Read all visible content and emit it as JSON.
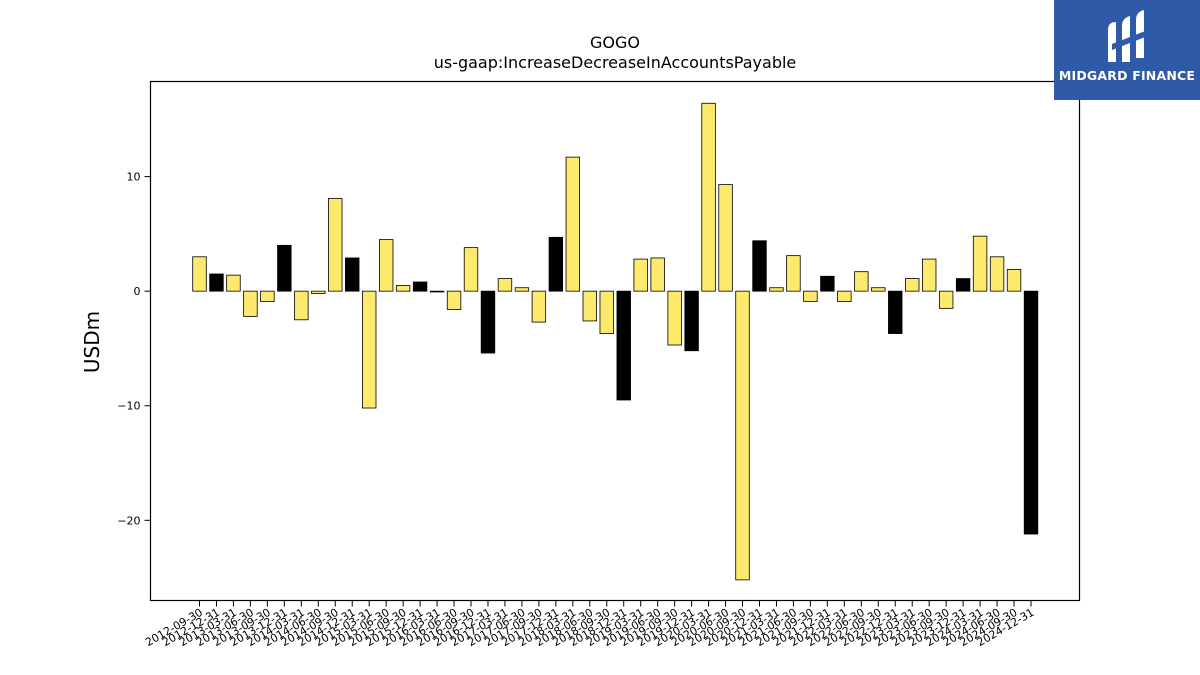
{
  "brand": {
    "name": "MIDGARD FINANCE",
    "bg_color": "#2f5aa8",
    "icon": "midgard-m-logo-icon"
  },
  "chart_data": {
    "type": "bar",
    "title": "GOGO",
    "subtitle": "us-gaap:IncreaseDecreaseInAccountsPayable",
    "xlabel": "",
    "ylabel": "USDm",
    "ylim": [
      -27,
      18.3
    ],
    "yticks": [
      -20,
      -10,
      0,
      10
    ],
    "ytick_labels": [
      "−20",
      "−10",
      "0",
      "10"
    ],
    "grid": false,
    "colors": {
      "quarterly": "#fde96b",
      "annual": "#000000",
      "edge": "#000000"
    },
    "categories": [
      "2012-09-30",
      "2012-12-31",
      "2013-03-31",
      "2013-06-30",
      "2013-09-30",
      "2013-12-31",
      "2014-03-31",
      "2014-06-30",
      "2014-09-30",
      "2014-12-31",
      "2015-03-31",
      "2015-06-30",
      "2015-09-30",
      "2015-12-31",
      "2016-03-31",
      "2016-06-30",
      "2016-09-30",
      "2016-12-31",
      "2017-03-31",
      "2017-06-30",
      "2017-09-30",
      "2017-12-31",
      "2018-03-31",
      "2018-06-30",
      "2018-09-30",
      "2018-12-31",
      "2019-03-31",
      "2019-06-30",
      "2019-09-30",
      "2019-12-31",
      "2020-03-31",
      "2020-06-30",
      "2020-09-30",
      "2020-12-31",
      "2021-03-31",
      "2021-06-30",
      "2021-09-30",
      "2021-12-31",
      "2022-03-31",
      "2022-06-30",
      "2022-09-30",
      "2022-12-31",
      "2023-03-31",
      "2023-06-30",
      "2023-09-30",
      "2023-12-31",
      "2024-03-31",
      "2024-06-30",
      "2024-09-30",
      "2024-12-31"
    ],
    "values": [
      3.0,
      1.5,
      1.4,
      -2.2,
      -0.9,
      4.0,
      -2.5,
      -0.2,
      8.1,
      2.9,
      -10.2,
      4.5,
      0.5,
      0.8,
      0.0,
      -1.6,
      3.8,
      -5.4,
      1.1,
      0.3,
      -2.7,
      4.7,
      11.7,
      -2.6,
      -3.7,
      -9.5,
      2.8,
      2.9,
      -4.7,
      -5.2,
      16.4,
      9.3,
      -25.2,
      4.4,
      0.3,
      3.1,
      -0.9,
      1.3,
      -0.9,
      1.7,
      0.3,
      -3.7,
      1.1,
      2.8,
      -1.5,
      1.1,
      4.8,
      3.0,
      1.9,
      -21.2
    ],
    "annual": [
      false,
      true,
      false,
      false,
      false,
      true,
      false,
      false,
      false,
      true,
      false,
      false,
      false,
      true,
      false,
      false,
      false,
      true,
      false,
      false,
      false,
      true,
      false,
      false,
      false,
      true,
      false,
      false,
      false,
      true,
      false,
      false,
      false,
      true,
      false,
      false,
      false,
      true,
      false,
      false,
      false,
      true,
      false,
      false,
      false,
      true,
      false,
      false,
      false,
      true
    ]
  }
}
